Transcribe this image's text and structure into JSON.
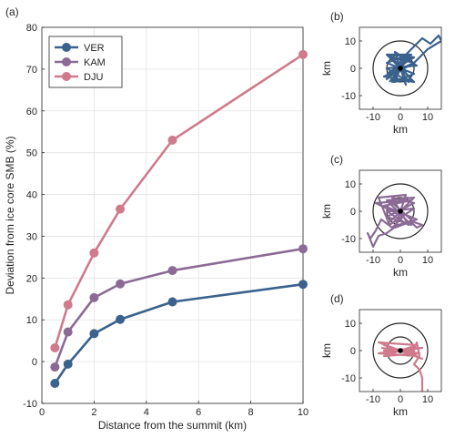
{
  "chart_data": [
    {
      "id": "a",
      "panel_label": "(a)",
      "type": "line",
      "xlabel": "Distance from the summit (km)",
      "ylabel": "Deviation from ice core SMB (%)",
      "xlim": [
        0,
        10
      ],
      "ylim": [
        -10,
        80
      ],
      "xticks": [
        0,
        2,
        4,
        6,
        8,
        10
      ],
      "yticks": [
        -10,
        0,
        10,
        20,
        30,
        40,
        50,
        60,
        70,
        80
      ],
      "grid": true,
      "legend": "top-left",
      "x": [
        0.5,
        1,
        2,
        3,
        5,
        10
      ],
      "series": [
        {
          "name": "VER",
          "color": "#3a628d",
          "values": [
            -5.2,
            -0.6,
            6.7,
            10.1,
            14.3,
            18.5
          ]
        },
        {
          "name": "KAM",
          "color": "#8b6b96",
          "values": [
            -1.3,
            7.1,
            15.3,
            18.6,
            21.8,
            27.0
          ]
        },
        {
          "name": "DJU",
          "color": "#d07a8c",
          "values": [
            3.3,
            13.6,
            26.0,
            36.5,
            53.0,
            73.5
          ]
        }
      ]
    },
    {
      "id": "b",
      "panel_label": "(b)",
      "type": "scatter",
      "xlabel": "km",
      "ylabel": "km",
      "xlim": [
        -15,
        15
      ],
      "ylim": [
        -15,
        15
      ],
      "xticks": [
        -10,
        0,
        10
      ],
      "yticks": [
        -10,
        0,
        10
      ],
      "circles_km": [
        5,
        10
      ],
      "color": "#3a628d",
      "track": [
        [
          -5,
          -2
        ],
        [
          5,
          4
        ],
        [
          -4,
          5
        ],
        [
          4,
          -4
        ],
        [
          -3,
          -5
        ],
        [
          3,
          5
        ],
        [
          -5,
          2
        ],
        [
          5,
          -2
        ],
        [
          -2,
          -5
        ],
        [
          2,
          5
        ],
        [
          -5,
          -4
        ],
        [
          4,
          4
        ],
        [
          -4,
          -3
        ],
        [
          5,
          2
        ],
        [
          -3,
          4
        ],
        [
          3,
          -5
        ],
        [
          -5,
          0
        ],
        [
          6,
          1
        ],
        [
          -2,
          6
        ],
        [
          2,
          -6
        ],
        [
          0,
          3
        ],
        [
          4,
          7
        ],
        [
          8,
          11
        ],
        [
          11,
          9
        ],
        [
          14,
          12
        ],
        [
          15,
          10
        ],
        [
          10,
          7
        ],
        [
          7,
          4
        ],
        [
          5,
          2
        ],
        [
          -6,
          -3
        ],
        [
          5,
          -5
        ],
        [
          -5,
          5
        ],
        [
          4,
          5
        ],
        [
          -4,
          -5
        ]
      ]
    },
    {
      "id": "c",
      "panel_label": "(c)",
      "type": "scatter",
      "xlabel": "km",
      "ylabel": "km",
      "xlim": [
        -15,
        15
      ],
      "ylim": [
        -15,
        15
      ],
      "xticks": [
        -10,
        0,
        10
      ],
      "yticks": [
        -10,
        0,
        10
      ],
      "circles_km": [
        5,
        10
      ],
      "color": "#8b6b96",
      "track": [
        [
          -4,
          -4
        ],
        [
          5,
          5
        ],
        [
          -5,
          4
        ],
        [
          4,
          -5
        ],
        [
          -5,
          -2
        ],
        [
          5,
          3
        ],
        [
          -3,
          5
        ],
        [
          3,
          -5
        ],
        [
          -5,
          0
        ],
        [
          5,
          1
        ],
        [
          -4,
          -5
        ],
        [
          -8,
          5
        ],
        [
          2,
          6
        ],
        [
          -2,
          -6
        ],
        [
          6,
          -3
        ],
        [
          -6,
          2
        ],
        [
          4,
          4
        ],
        [
          -9,
          3
        ],
        [
          1,
          -2
        ],
        [
          -3,
          -6
        ],
        [
          -7,
          -3
        ],
        [
          -9,
          -7
        ],
        [
          -11,
          -10
        ],
        [
          -12,
          -8
        ],
        [
          -10,
          -13
        ],
        [
          -8,
          -9
        ],
        [
          -5,
          -8
        ],
        [
          -1,
          -5
        ],
        [
          4,
          -4
        ],
        [
          6,
          -6
        ],
        [
          8,
          -5
        ],
        [
          5,
          -4
        ],
        [
          -4,
          4
        ],
        [
          3,
          5
        ]
      ]
    },
    {
      "id": "d",
      "panel_label": "(d)",
      "type": "scatter",
      "xlabel": "km",
      "ylabel": "km",
      "xlim": [
        -15,
        15
      ],
      "ylim": [
        -15,
        15
      ],
      "xticks": [
        -10,
        0,
        10
      ],
      "yticks": [
        -10,
        0,
        10
      ],
      "circles_km": [
        5,
        10
      ],
      "color": "#d07a8c",
      "track": [
        [
          -7,
          1
        ],
        [
          7,
          -1
        ],
        [
          -6,
          -2
        ],
        [
          6,
          2
        ],
        [
          -8,
          3
        ],
        [
          8,
          -3
        ],
        [
          -6,
          2
        ],
        [
          6,
          -2
        ],
        [
          -8,
          -1
        ],
        [
          8,
          1
        ],
        [
          -6,
          0
        ],
        [
          5,
          0
        ],
        [
          6,
          3
        ],
        [
          7,
          -2
        ],
        [
          5,
          -5
        ],
        [
          7,
          -7
        ],
        [
          8,
          -10
        ],
        [
          8,
          -13
        ],
        [
          8,
          -15
        ]
      ]
    }
  ]
}
